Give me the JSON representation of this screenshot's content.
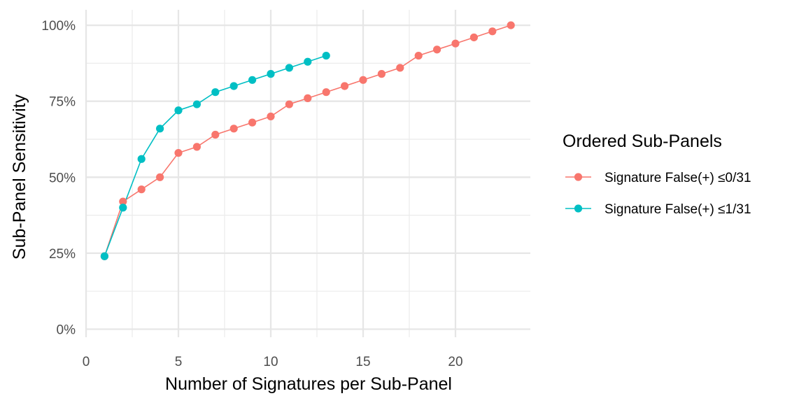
{
  "chart_data": {
    "type": "line",
    "xlabel": "Number of Signatures per Sub-Panel",
    "ylabel": "Sub-Panel Sensitivity",
    "xlim": [
      0,
      24
    ],
    "ylim": [
      0,
      100
    ],
    "x_ticks": [
      0,
      5,
      10,
      15,
      20
    ],
    "x_tick_labels": [
      "0",
      "5",
      "10",
      "15",
      "20"
    ],
    "y_ticks": [
      0,
      25,
      50,
      75,
      100
    ],
    "y_tick_labels": [
      "0%",
      "25%",
      "50%",
      "75%",
      "100%"
    ],
    "grid": true,
    "legend": {
      "title": "Ordered Sub-Panels",
      "placement": "right"
    },
    "series": [
      {
        "name": "Signature False(+) ≤0/31",
        "color": "#F8766D",
        "x": [
          1,
          2,
          3,
          4,
          5,
          6,
          7,
          8,
          9,
          10,
          11,
          12,
          13,
          14,
          15,
          16,
          17,
          18,
          19,
          20,
          21,
          22,
          23
        ],
        "y": [
          24,
          42,
          46,
          50,
          58,
          60,
          64,
          66,
          68,
          70,
          74,
          76,
          78,
          80,
          82,
          84,
          86,
          90,
          92,
          94,
          96,
          98,
          100
        ]
      },
      {
        "name": "Signature False(+) ≤1/31",
        "color": "#00BFC4",
        "x": [
          1,
          2,
          3,
          4,
          5,
          6,
          7,
          8,
          9,
          10,
          11,
          12,
          13
        ],
        "y": [
          24,
          40,
          56,
          66,
          72,
          74,
          78,
          80,
          82,
          84,
          86,
          88,
          90
        ]
      }
    ]
  }
}
